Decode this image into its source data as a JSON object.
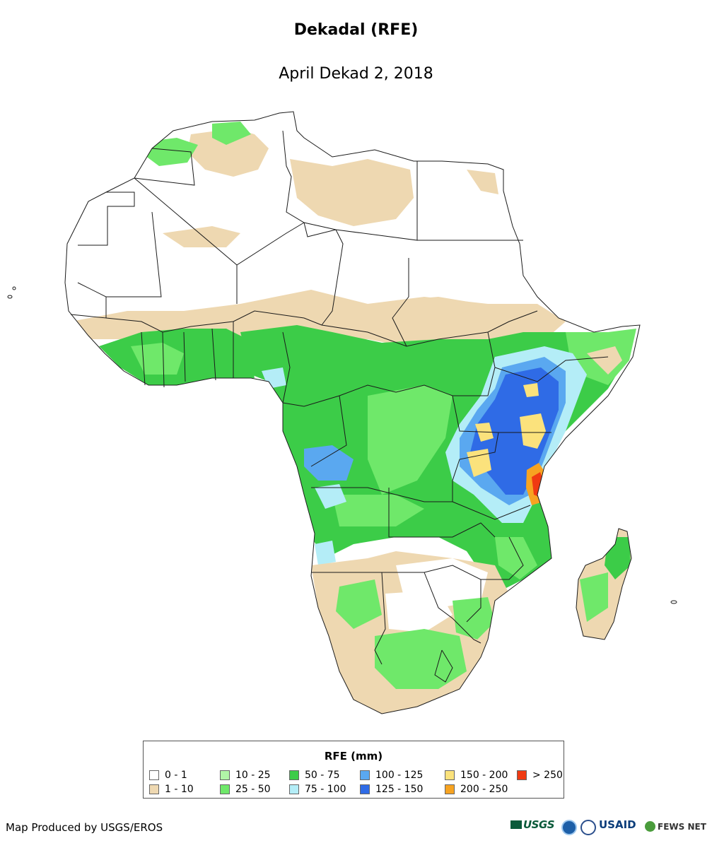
{
  "title": "Dekadal (RFE)",
  "subtitle": "April Dekad 2, 2018",
  "legend": {
    "title": "RFE (mm)",
    "items": [
      {
        "label": "0 - 1",
        "color": "#ffffff"
      },
      {
        "label": "1 - 10",
        "color": "#eed8b1"
      },
      {
        "label": "10 - 25",
        "color": "#b1f5a7"
      },
      {
        "label": "25 - 50",
        "color": "#6fe86a"
      },
      {
        "label": "50 - 75",
        "color": "#3ccc48"
      },
      {
        "label": "75 - 100",
        "color": "#b4edf7"
      },
      {
        "label": "100 - 125",
        "color": "#5aa8f0"
      },
      {
        "label": "125 - 150",
        "color": "#2f6be6"
      },
      {
        "label": "150 - 200",
        "color": "#fbe27c"
      },
      {
        "label": "200 - 250",
        "color": "#f7a321"
      },
      {
        "label": "> 250",
        "color": "#f03a12"
      }
    ]
  },
  "credit": "Map Produced by USGS/EROS",
  "logos": {
    "usgs": "USGS",
    "usaid": "USAID",
    "fews": "FEWS NET"
  },
  "colors": {
    "borders": "#1a1a1a",
    "dry": "#eed8b1",
    "green_light": "#6fe86a",
    "green": "#3ccc48",
    "cyan": "#b4edf7",
    "blue_light": "#5aa8f0",
    "blue": "#2f6be6",
    "yellow": "#fbe27c",
    "orange": "#f7a321",
    "red": "#f03a12"
  }
}
